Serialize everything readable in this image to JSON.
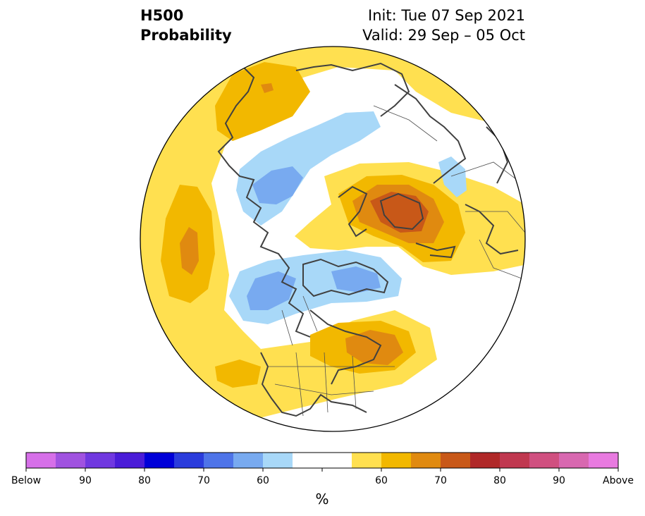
{
  "title": {
    "line1": "H500",
    "line2": "Probability",
    "init": "Init: Tue 07 Sep 2021",
    "valid": "Valid: 29 Sep – 05 Oct"
  },
  "colorbar": {
    "unit": "%",
    "colors": [
      "#d66fe8",
      "#a052e0",
      "#7038e0",
      "#4a1cd8",
      "#0000d8",
      "#2a3cdc",
      "#4e74e8",
      "#78aaf0",
      "#a8d8f8",
      "#ffffff",
      "#ffffff",
      "#ffe050",
      "#f2b800",
      "#e08a10",
      "#c85818",
      "#b02828",
      "#c03850",
      "#d05080",
      "#d868b0",
      "#e87ae0"
    ],
    "tick_labels": [
      "Below",
      "90",
      "80",
      "70",
      "60",
      "60",
      "70",
      "80",
      "90",
      "Above"
    ]
  },
  "map": {
    "projection": "north-polar-stereographic",
    "legend": {
      "below_normal_colors": [
        "#a8d8f8",
        "#78aaf0"
      ],
      "above_normal_colors": [
        "#ffe050",
        "#f2b800",
        "#e08a10",
        "#c85818"
      ]
    }
  }
}
